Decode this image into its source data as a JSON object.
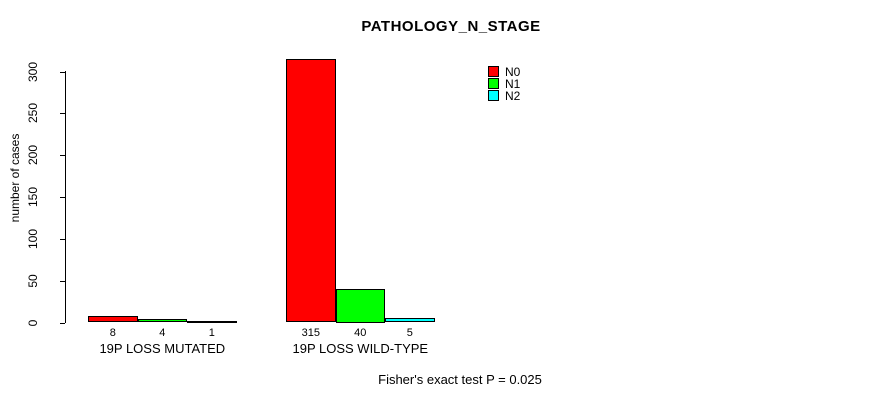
{
  "chart_data": {
    "type": "bar",
    "title": "PATHOLOGY_N_STAGE",
    "ylabel": "number of cases",
    "ylim": [
      0,
      300
    ],
    "yticks": [
      0,
      50,
      100,
      150,
      200,
      250,
      300
    ],
    "categories": [
      "19P LOSS MUTATED",
      "19P LOSS WILD-TYPE"
    ],
    "series": [
      {
        "name": "N0",
        "color": "#ff0000",
        "values": [
          8,
          315
        ]
      },
      {
        "name": "N1",
        "color": "#00ff00",
        "values": [
          4,
          40
        ]
      },
      {
        "name": "N2",
        "color": "#00ffff",
        "values": [
          1,
          5
        ]
      }
    ],
    "bar_value_labels": [
      [
        8,
        4,
        1
      ],
      [
        315,
        40,
        5
      ]
    ],
    "legend_position": "top-right",
    "grid": false,
    "annotation": "Fisher's exact test P = 0.025"
  }
}
